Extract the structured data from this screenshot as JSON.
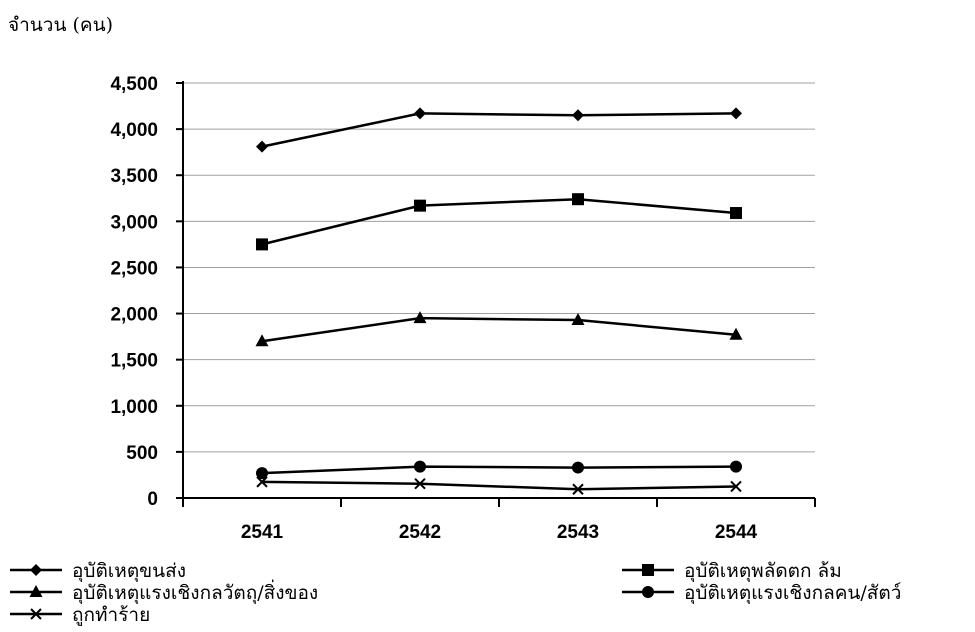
{
  "chart_data": {
    "type": "line",
    "title": "",
    "ylabel": "จำนวน (คน)",
    "xlabel": "",
    "categories": [
      "2541",
      "2542",
      "2543",
      "2544"
    ],
    "ylim": [
      0,
      4500
    ],
    "yticks": [
      0,
      500,
      1000,
      1500,
      2000,
      2500,
      3000,
      3500,
      4000,
      4500
    ],
    "ytick_labels": [
      "0",
      "500",
      "1,000",
      "1,500",
      "2,000",
      "2,500",
      "3,000",
      "3,500",
      "4,000",
      "4,500"
    ],
    "grid": true,
    "legend_position": "bottom",
    "series": [
      {
        "name": "อุบัติเหตุขนส่ง",
        "marker": "diamond",
        "values": [
          3810,
          4170,
          4150,
          4170
        ]
      },
      {
        "name": "อุบัติเหตุพลัดตก ล้ม",
        "marker": "square",
        "values": [
          2750,
          3170,
          3240,
          3090
        ]
      },
      {
        "name": "อุบัติเหตุแรงเชิงกลวัตถุ/สิ่งของ",
        "marker": "triangle",
        "values": [
          1700,
          1950,
          1930,
          1770
        ]
      },
      {
        "name": "อุบัติเหตุแรงเชิงกลคน/สัตว์",
        "marker": "circle",
        "values": [
          270,
          340,
          330,
          340
        ]
      },
      {
        "name": "ถูกทำร้าย",
        "marker": "x",
        "values": [
          175,
          155,
          95,
          125
        ]
      }
    ]
  }
}
